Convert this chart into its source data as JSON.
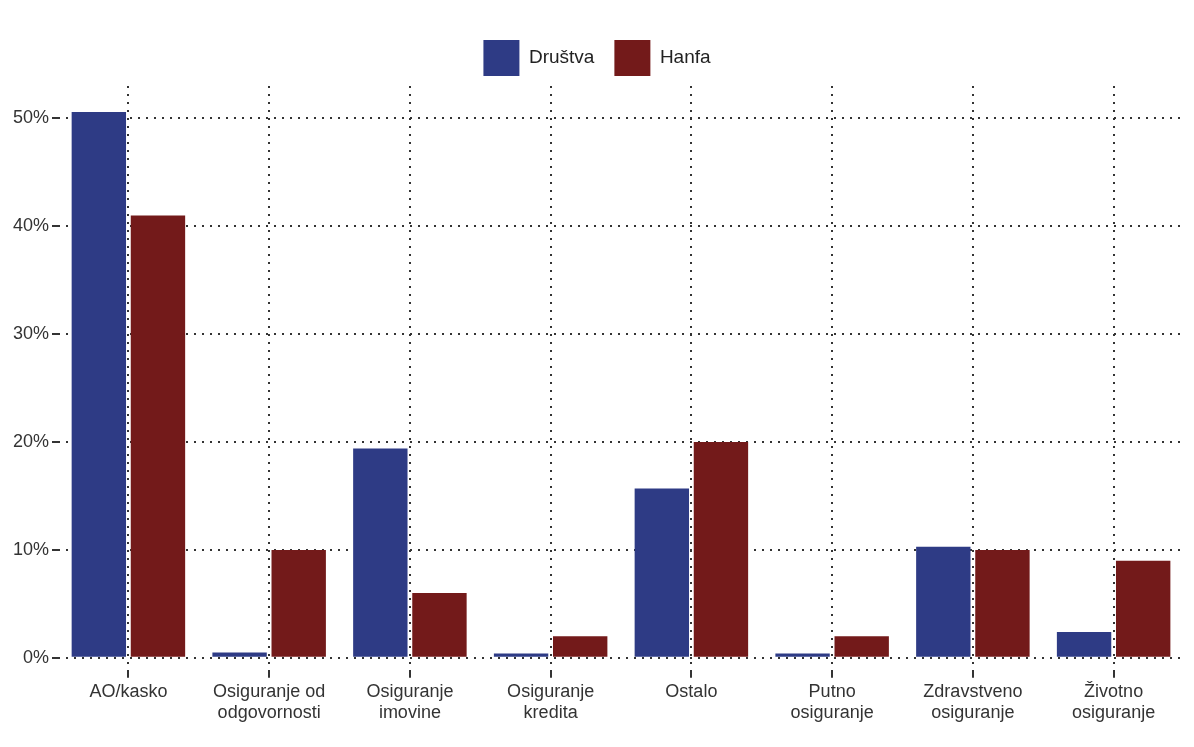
{
  "chart_data": {
    "type": "bar",
    "categories": [
      "AO/kasko",
      "Osiguranje od odgovornosti",
      "Osiguranje imovine",
      "Osiguranje kredita",
      "Ostalo",
      "Putno osiguranje",
      "Zdravstveno osiguranje",
      "Životno osiguranje"
    ],
    "series": [
      {
        "name": "Društva",
        "color": "#2e3b85",
        "values": [
          50.6,
          0.5,
          19.4,
          0.4,
          15.7,
          0.4,
          10.3,
          2.4
        ]
      },
      {
        "name": "Hanfa",
        "color": "#731a1a",
        "values": [
          41,
          10,
          6,
          2,
          20,
          2,
          10,
          9
        ]
      }
    ],
    "ylim": [
      -1.3,
      53
    ],
    "yticks": [
      {
        "value": 0,
        "label": "0%"
      },
      {
        "value": 10,
        "label": "10%"
      },
      {
        "value": 20,
        "label": "20%"
      },
      {
        "value": 30,
        "label": "30%"
      },
      {
        "value": 40,
        "label": "40%"
      },
      {
        "value": 50,
        "label": "50%"
      }
    ],
    "grid": true,
    "line_style": "dotted",
    "legend": "top"
  }
}
